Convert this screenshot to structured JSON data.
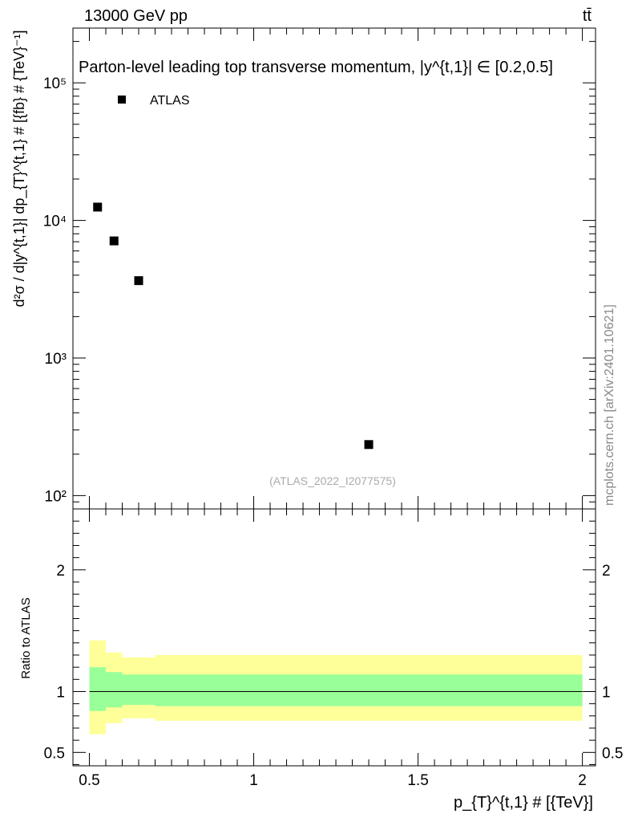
{
  "header": {
    "energy_label": "13000 GeV pp",
    "process_label": "tt̄",
    "side_label": "mcplots.cern.ch [arXiv:2401.10621]"
  },
  "chart_data": [
    {
      "type": "scatter",
      "title": "Parton-level leading top transverse momentum, |y^{t,1}| ∈ [0.2,0.5]",
      "ylabel": "d²σ / d|y^{t,1}| dp_{T}^{t,1} # [{fb} # {TeV}⁻¹]",
      "yscale": "log",
      "ylim": [
        80,
        250000
      ],
      "xlim": [
        0.45,
        2.04
      ],
      "y_tick_labels": [
        "10²",
        "10³",
        "10⁴",
        "10⁵"
      ],
      "legend": "top-left",
      "watermark": "(ATLAS_2022_I2077575)",
      "series": [
        {
          "name": "ATLAS",
          "marker": "square",
          "color": "#000000",
          "x": [
            0.525,
            0.575,
            0.65,
            1.35
          ],
          "y": [
            12500,
            7100,
            3650,
            235
          ]
        }
      ]
    },
    {
      "type": "area",
      "ylabel": "Ratio to ATLAS",
      "ylim": [
        0.39,
        2.5
      ],
      "xlim": [
        0.45,
        2.04
      ],
      "xlabel": "p_{T}^{t,1} # [{TeV}]",
      "x_tick_labels": [
        "0.5",
        "1",
        "1.5",
        "2"
      ],
      "y_tick_labels": [
        "0.5",
        "1",
        "2"
      ],
      "reference_line": 1,
      "bins": [
        {
          "x0": 0.5,
          "x1": 0.55,
          "inner": [
            0.84,
            1.2
          ],
          "outer": [
            0.65,
            1.42
          ]
        },
        {
          "x0": 0.55,
          "x1": 0.6,
          "inner": [
            0.87,
            1.16
          ],
          "outer": [
            0.74,
            1.32
          ]
        },
        {
          "x0": 0.6,
          "x1": 0.7,
          "inner": [
            0.89,
            1.14
          ],
          "outer": [
            0.78,
            1.28
          ]
        },
        {
          "x0": 0.7,
          "x1": 2.0,
          "inner": [
            0.88,
            1.14
          ],
          "outer": [
            0.76,
            1.3
          ]
        }
      ],
      "inner_color": "#99ff99",
      "outer_color": "#ffff99"
    }
  ]
}
